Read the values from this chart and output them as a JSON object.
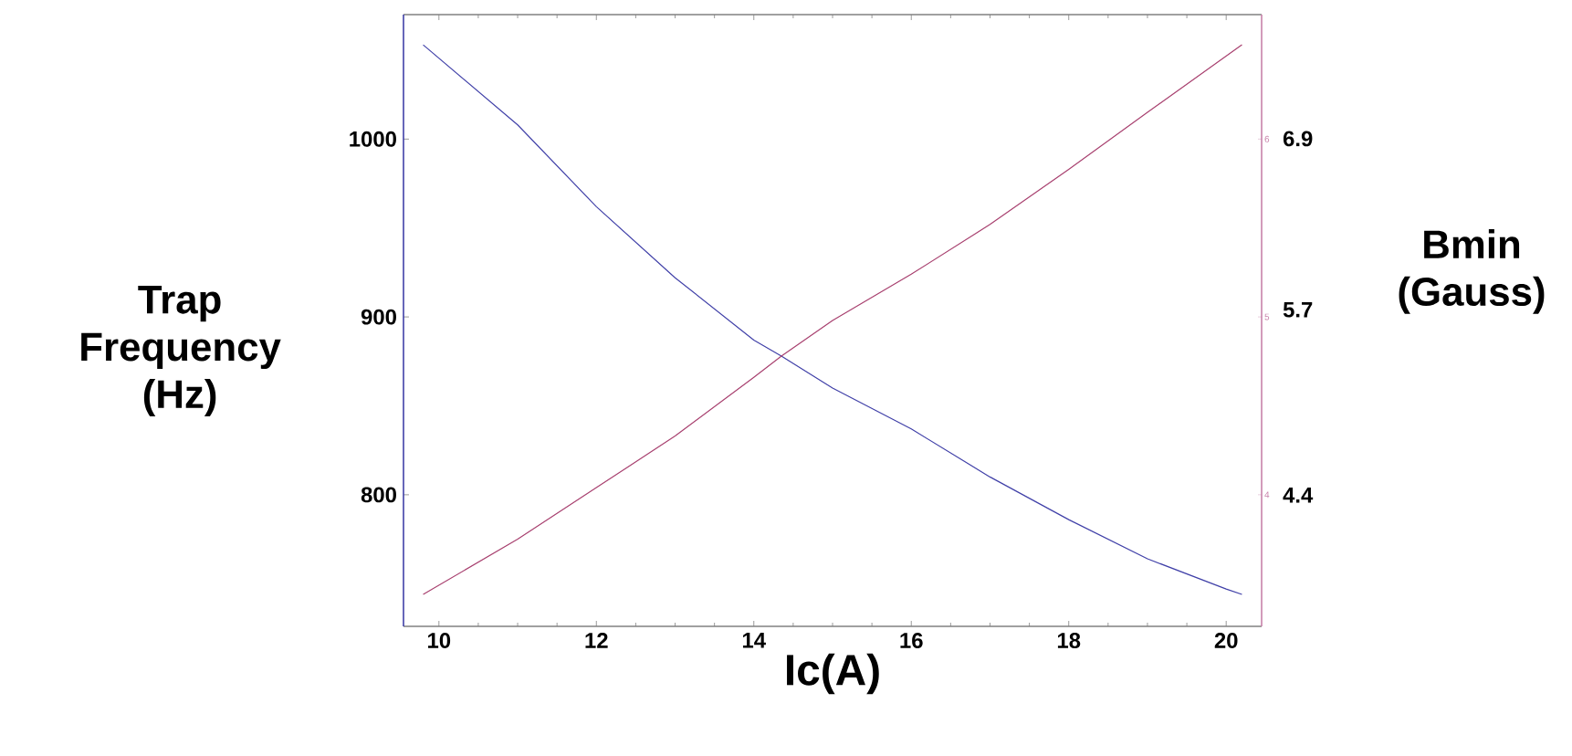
{
  "chart_data": {
    "type": "line",
    "xlabel": "Ic(A)",
    "ylabel": "Trap Frequency (Hz)",
    "y2label": "Bmin (Gauss)",
    "xlim": [
      9.55,
      20.45
    ],
    "xticks": [
      10,
      12,
      14,
      16,
      18,
      20
    ],
    "ylim": [
      726,
      1070
    ],
    "yticks": [
      800,
      900,
      1000
    ],
    "y2lim": [
      3.26,
      6.7
    ],
    "y2ticks": [
      4,
      5,
      6
    ],
    "y3lim": [
      3.48,
      7.77
    ],
    "y3ticks": [
      4.4,
      5.7,
      6.9
    ],
    "series": [
      {
        "color": "#4040a8",
        "x": [
          9.8,
          11,
          12,
          13,
          14,
          14.35,
          15,
          16,
          17,
          18,
          19,
          20,
          20.2
        ],
        "values": [
          1053,
          1008,
          962,
          922,
          887,
          878,
          860,
          837,
          810,
          786,
          764,
          747,
          744
        ]
      },
      {
        "color": "#a8406f",
        "axis": "y2",
        "x": [
          9.8,
          11,
          12,
          13,
          14,
          14.35,
          15,
          16,
          17,
          18,
          19,
          20.2
        ],
        "values": [
          3.44,
          3.75,
          4.04,
          4.33,
          4.66,
          4.78,
          4.98,
          5.24,
          5.52,
          5.83,
          6.15,
          6.53
        ]
      }
    ]
  }
}
